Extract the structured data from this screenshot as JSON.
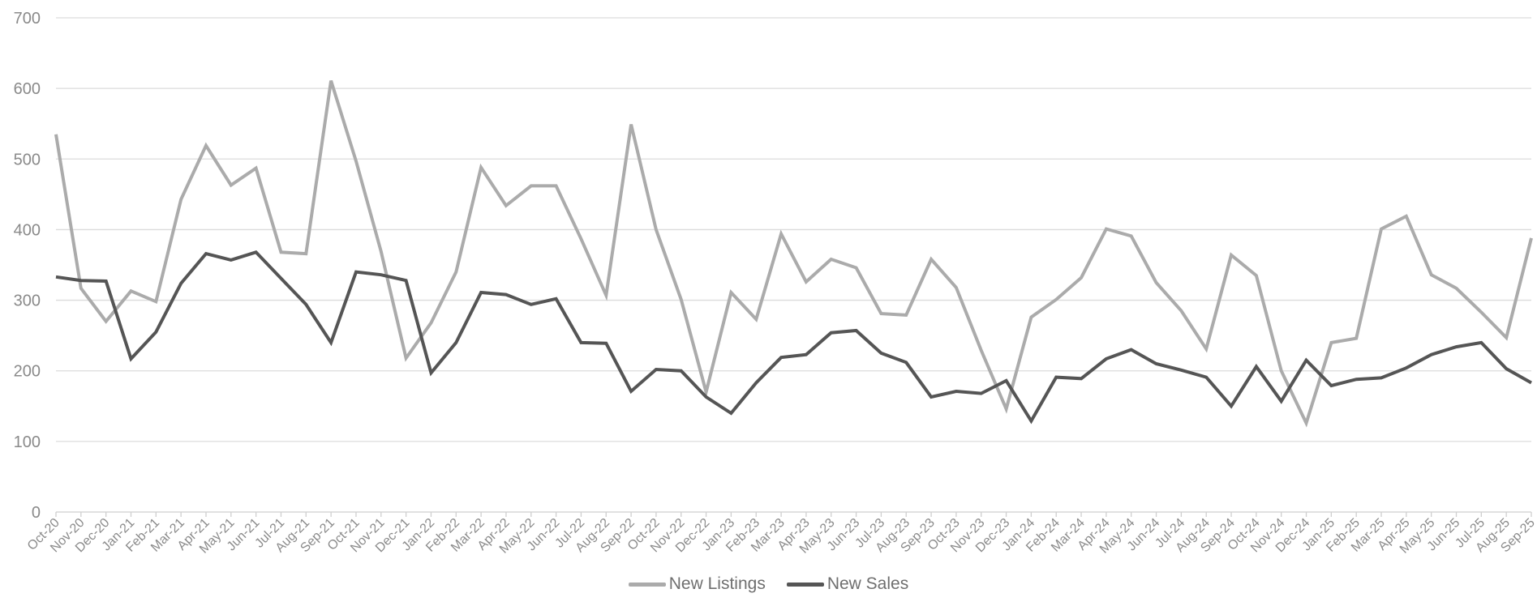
{
  "chart_data": {
    "type": "line",
    "title": "",
    "xlabel": "",
    "ylabel": "",
    "ylim": [
      0,
      700
    ],
    "yticks": [
      0,
      100,
      200,
      300,
      400,
      500,
      600,
      700
    ],
    "grid": true,
    "legend_position": "bottom-center",
    "categories": [
      "Oct-20",
      "Nov-20",
      "Dec-20",
      "Jan-21",
      "Feb-21",
      "Mar-21",
      "Apr-21",
      "May-21",
      "Jun-21",
      "Jul-21",
      "Aug-21",
      "Sep-21",
      "Oct-21",
      "Nov-21",
      "Dec-21",
      "Jan-22",
      "Feb-22",
      "Mar-22",
      "Apr-22",
      "May-22",
      "Jun-22",
      "Jul-22",
      "Aug-22",
      "Sep-22",
      "Oct-22",
      "Nov-22",
      "Dec-22",
      "Jan-23",
      "Feb-23",
      "Mar-23",
      "Apr-23",
      "May-23",
      "Jun-23",
      "Jul-23",
      "Aug-23",
      "Sep-23",
      "Oct-23",
      "Nov-23",
      "Dec-23",
      "Jan-24",
      "Feb-24",
      "Mar-24",
      "Apr-24",
      "May-24",
      "Jun-24",
      "Jul-24",
      "Aug-24",
      "Sep-24",
      "Oct-24",
      "Nov-24",
      "Dec-24",
      "Jan-25",
      "Feb-25",
      "Mar-25",
      "Apr-25",
      "May-25",
      "Jun-25",
      "Jul-25",
      "Aug-25",
      "Sep-25"
    ],
    "series": [
      {
        "name": "New Listings",
        "color": "#ababab",
        "values": [
          535,
          317,
          270,
          313,
          298,
          443,
          519,
          463,
          487,
          368,
          366,
          611,
          497,
          369,
          218,
          268,
          340,
          488,
          434,
          462,
          462,
          387,
          307,
          549,
          400,
          301,
          170,
          311,
          273,
          394,
          326,
          358,
          346,
          281,
          279,
          358,
          318,
          229,
          146,
          276,
          301,
          332,
          401,
          391,
          325,
          285,
          231,
          364,
          335,
          200,
          126,
          240,
          246,
          401,
          419,
          336,
          317,
          283,
          247,
          388
        ]
      },
      {
        "name": "New Sales",
        "color": "#555555",
        "values": [
          333,
          328,
          327,
          217,
          255,
          324,
          366,
          357,
          368,
          331,
          294,
          240,
          340,
          336,
          328,
          197,
          240,
          311,
          308,
          294,
          302,
          240,
          239,
          171,
          202,
          200,
          163,
          140,
          183,
          219,
          223,
          254,
          257,
          225,
          212,
          163,
          171,
          168,
          186,
          129,
          191,
          189,
          217,
          230,
          210,
          201,
          191,
          150,
          206,
          157,
          215,
          179,
          188,
          190,
          204,
          223,
          234,
          240,
          203,
          183
        ]
      }
    ]
  }
}
